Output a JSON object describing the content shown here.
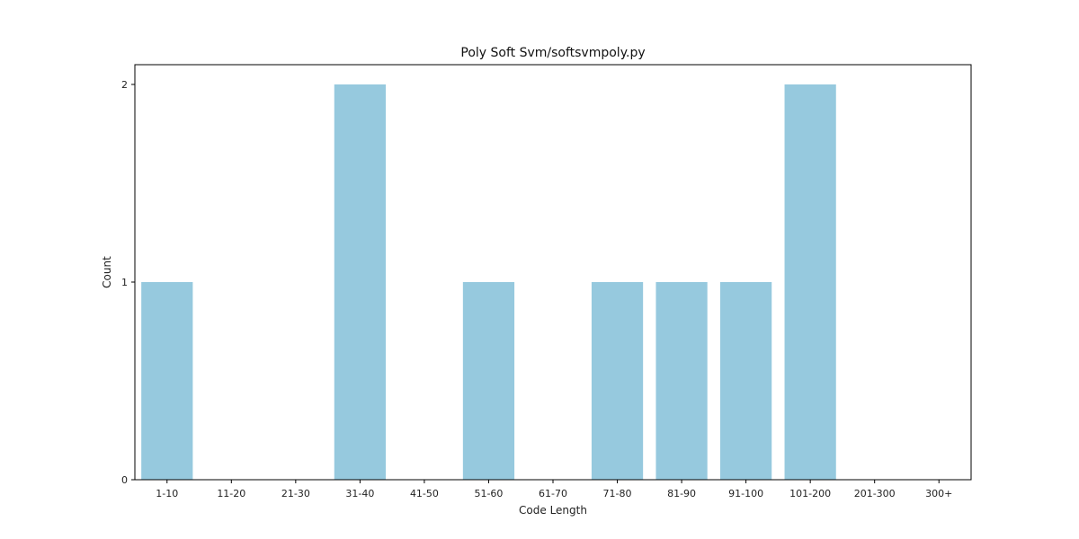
{
  "chart_data": {
    "type": "bar",
    "title": "Poly Soft Svm/softsvmpoly.py",
    "xlabel": "Code Length",
    "ylabel": "Count",
    "categories": [
      "1-10",
      "11-20",
      "21-30",
      "31-40",
      "41-50",
      "51-60",
      "61-70",
      "71-80",
      "81-90",
      "91-100",
      "101-200",
      "201-300",
      "300+"
    ],
    "values": [
      1,
      0,
      0,
      2,
      0,
      1,
      0,
      1,
      1,
      1,
      2,
      0,
      0
    ],
    "yticks": [
      "0",
      "1",
      "2"
    ],
    "ylim": [
      0,
      2.1
    ],
    "grid": false,
    "bar_color": "#96c9de"
  }
}
